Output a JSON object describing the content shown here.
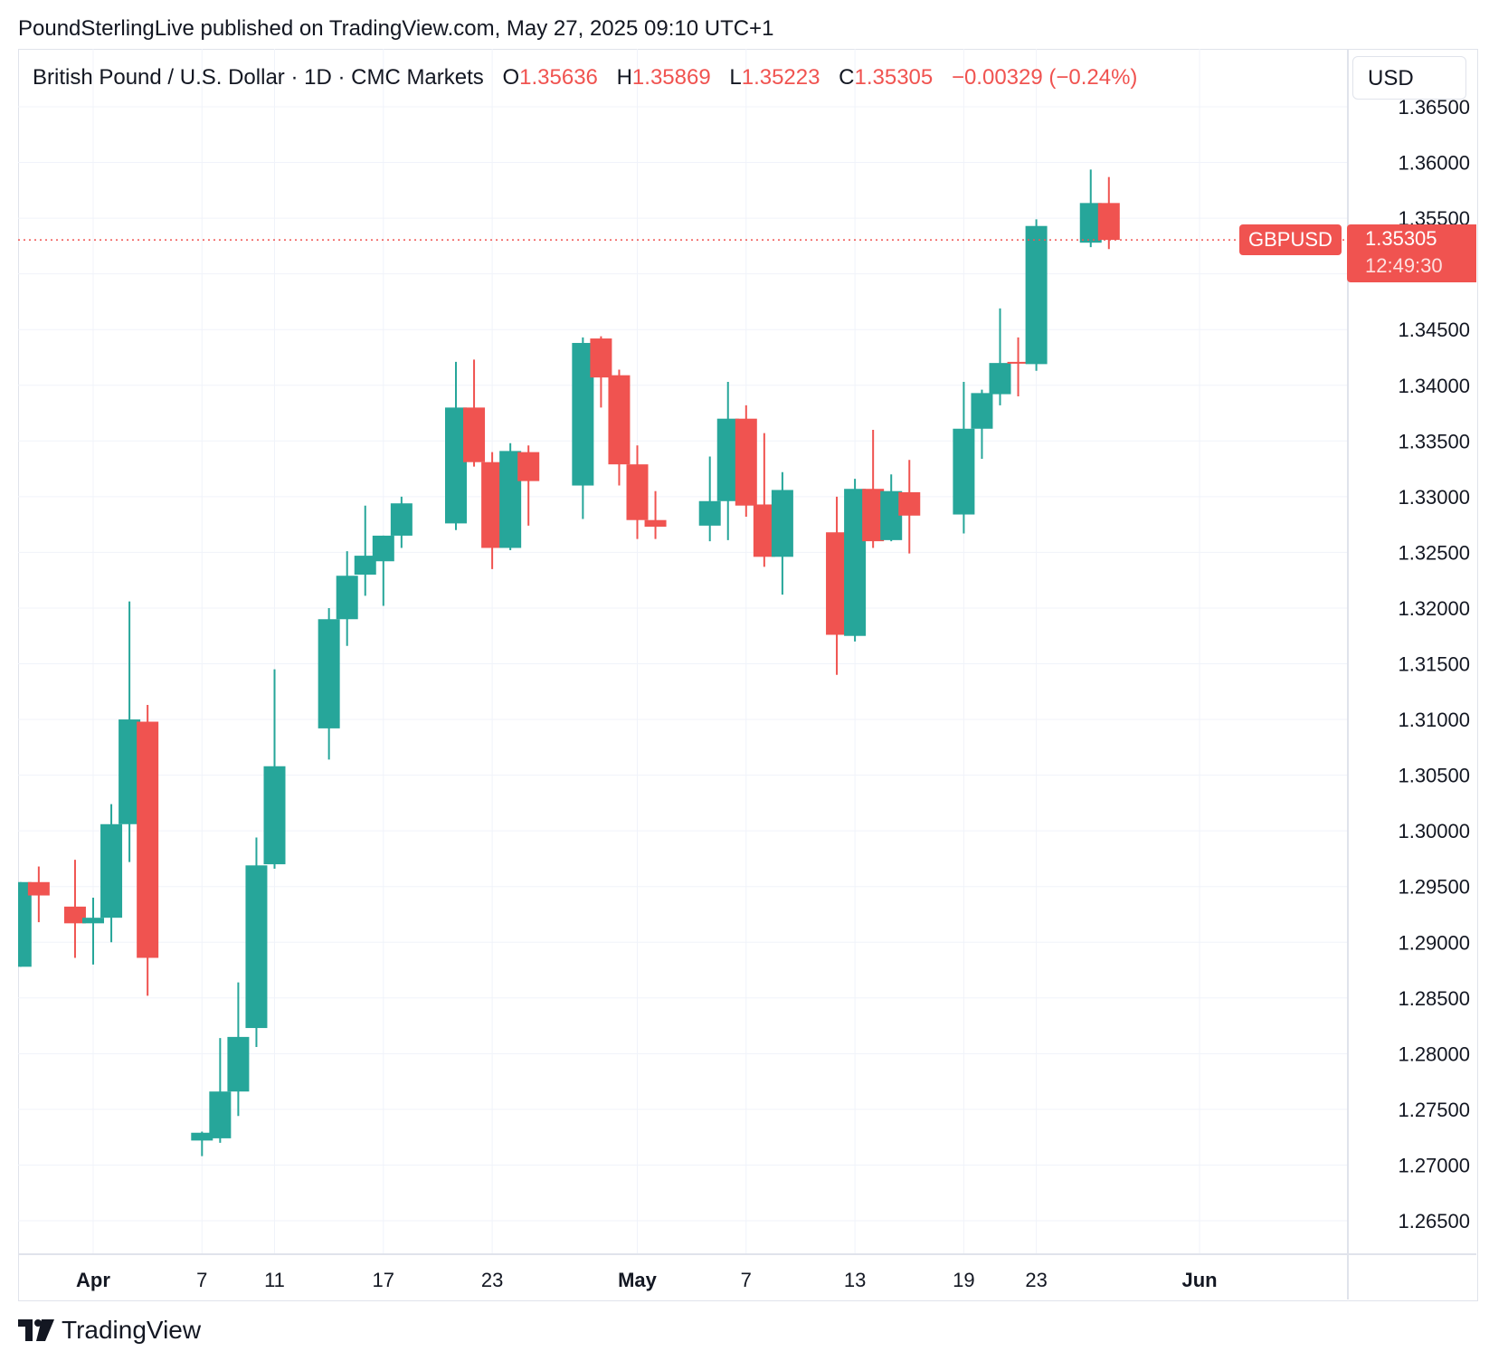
{
  "header": {
    "published": "PoundSterlingLive published on TradingView.com, May 27, 2025 09:10 UTC+1"
  },
  "legend": {
    "instrument": "British Pound / U.S. Dollar · 1D · CMC Markets",
    "o_label": "O",
    "o_value": "1.35636",
    "h_label": "H",
    "h_value": "1.35869",
    "l_label": "L",
    "l_value": "1.35223",
    "c_label": "C",
    "c_value": "1.35305",
    "change": "−0.00329 (−0.24%)"
  },
  "currency_button": "USD",
  "price_tag": {
    "symbol": "GBPUSD",
    "price": "1.35305",
    "countdown": "12:49:30"
  },
  "brand": {
    "name": "TradingView"
  },
  "colors": {
    "up": "#26a69a",
    "down": "#f05350",
    "grid": "#f0f3fa",
    "text": "#131722"
  },
  "chart_data": {
    "type": "candlestick",
    "ylim": [
      1.262,
      1.3675
    ],
    "y_ticks": [
      "1.26500",
      "1.27000",
      "1.27500",
      "1.28000",
      "1.28500",
      "1.29000",
      "1.29500",
      "1.30000",
      "1.30500",
      "1.31000",
      "1.31500",
      "1.32000",
      "1.32500",
      "1.33000",
      "1.33500",
      "1.34000",
      "1.34500",
      "1.35000",
      "1.35500",
      "1.36000",
      "1.36500"
    ],
    "x_ticks": [
      {
        "label": "Apr",
        "date": "2025-04-01",
        "bold": true
      },
      {
        "label": "7",
        "date": "2025-04-07",
        "bold": false
      },
      {
        "label": "11",
        "date": "2025-04-11",
        "bold": false
      },
      {
        "label": "17",
        "date": "2025-04-17",
        "bold": false
      },
      {
        "label": "23",
        "date": "2025-04-23",
        "bold": false
      },
      {
        "label": "May",
        "date": "2025-05-01",
        "bold": true
      },
      {
        "label": "7",
        "date": "2025-05-07",
        "bold": false
      },
      {
        "label": "13",
        "date": "2025-05-13",
        "bold": false
      },
      {
        "label": "19",
        "date": "2025-05-19",
        "bold": false
      },
      {
        "label": "23",
        "date": "2025-05-23",
        "bold": false
      },
      {
        "label": "Jun",
        "date": "2025-06-01",
        "bold": true
      }
    ],
    "last_price": 1.35305,
    "candles": [
      {
        "date": "2025-03-28",
        "open": 1.2878,
        "high": 1.2954,
        "low": 1.2878,
        "close": 1.2954
      },
      {
        "date": "2025-03-29",
        "open": 1.2954,
        "high": 1.2968,
        "low": 1.2918,
        "close": 1.2942
      },
      {
        "date": "2025-03-31",
        "open": 1.2932,
        "high": 1.2974,
        "low": 1.2886,
        "close": 1.2917
      },
      {
        "date": "2025-04-01",
        "open": 1.2917,
        "high": 1.294,
        "low": 1.288,
        "close": 1.2922
      },
      {
        "date": "2025-04-02",
        "open": 1.2922,
        "high": 1.3024,
        "low": 1.29,
        "close": 1.3006
      },
      {
        "date": "2025-04-03",
        "open": 1.3006,
        "high": 1.3206,
        "low": 1.2972,
        "close": 1.31
      },
      {
        "date": "2025-04-04",
        "open": 1.3098,
        "high": 1.3113,
        "low": 1.2852,
        "close": 1.2886
      },
      {
        "date": "2025-04-07",
        "open": 1.2722,
        "high": 1.273,
        "low": 1.2708,
        "close": 1.2729
      },
      {
        "date": "2025-04-08",
        "open": 1.2724,
        "high": 1.2814,
        "low": 1.272,
        "close": 1.2766
      },
      {
        "date": "2025-04-09",
        "open": 1.2766,
        "high": 1.2864,
        "low": 1.2744,
        "close": 1.2815
      },
      {
        "date": "2025-04-10",
        "open": 1.2823,
        "high": 1.2994,
        "low": 1.2806,
        "close": 1.2969
      },
      {
        "date": "2025-04-11",
        "open": 1.297,
        "high": 1.3145,
        "low": 1.2966,
        "close": 1.3058
      },
      {
        "date": "2025-04-14",
        "open": 1.3092,
        "high": 1.32,
        "low": 1.3064,
        "close": 1.319
      },
      {
        "date": "2025-04-15",
        "open": 1.319,
        "high": 1.3251,
        "low": 1.3166,
        "close": 1.3229
      },
      {
        "date": "2025-04-16",
        "open": 1.323,
        "high": 1.3292,
        "low": 1.3211,
        "close": 1.3247
      },
      {
        "date": "2025-04-17",
        "open": 1.3242,
        "high": 1.3265,
        "low": 1.3202,
        "close": 1.3265
      },
      {
        "date": "2025-04-18",
        "open": 1.3265,
        "high": 1.33,
        "low": 1.3254,
        "close": 1.3294
      },
      {
        "date": "2025-04-21",
        "open": 1.3276,
        "high": 1.3421,
        "low": 1.327,
        "close": 1.338
      },
      {
        "date": "2025-04-22",
        "open": 1.338,
        "high": 1.3423,
        "low": 1.3327,
        "close": 1.3331
      },
      {
        "date": "2025-04-23",
        "open": 1.3331,
        "high": 1.334,
        "low": 1.3235,
        "close": 1.3254
      },
      {
        "date": "2025-04-24",
        "open": 1.3254,
        "high": 1.3348,
        "low": 1.3252,
        "close": 1.3341
      },
      {
        "date": "2025-04-25",
        "open": 1.334,
        "high": 1.3346,
        "low": 1.3274,
        "close": 1.3314
      },
      {
        "date": "2025-04-28",
        "open": 1.331,
        "high": 1.3443,
        "low": 1.328,
        "close": 1.3438
      },
      {
        "date": "2025-04-29",
        "open": 1.3442,
        "high": 1.3444,
        "low": 1.338,
        "close": 1.3407
      },
      {
        "date": "2025-04-30",
        "open": 1.3409,
        "high": 1.3414,
        "low": 1.331,
        "close": 1.3329
      },
      {
        "date": "2025-05-01",
        "open": 1.3329,
        "high": 1.3346,
        "low": 1.3262,
        "close": 1.3279
      },
      {
        "date": "2025-05-02",
        "open": 1.3279,
        "high": 1.3305,
        "low": 1.3262,
        "close": 1.3273
      },
      {
        "date": "2025-05-05",
        "open": 1.3274,
        "high": 1.3336,
        "low": 1.326,
        "close": 1.3296
      },
      {
        "date": "2025-05-06",
        "open": 1.3296,
        "high": 1.3403,
        "low": 1.3261,
        "close": 1.337
      },
      {
        "date": "2025-05-07",
        "open": 1.337,
        "high": 1.3382,
        "low": 1.3282,
        "close": 1.3292
      },
      {
        "date": "2025-05-08",
        "open": 1.3293,
        "high": 1.3357,
        "low": 1.3237,
        "close": 1.3246
      },
      {
        "date": "2025-05-09",
        "open": 1.3246,
        "high": 1.3322,
        "low": 1.3212,
        "close": 1.3306
      },
      {
        "date": "2025-05-12",
        "open": 1.3268,
        "high": 1.33,
        "low": 1.314,
        "close": 1.3176
      },
      {
        "date": "2025-05-13",
        "open": 1.3175,
        "high": 1.3316,
        "low": 1.317,
        "close": 1.3307
      },
      {
        "date": "2025-05-14",
        "open": 1.3307,
        "high": 1.336,
        "low": 1.3254,
        "close": 1.326
      },
      {
        "date": "2025-05-15",
        "open": 1.3261,
        "high": 1.332,
        "low": 1.326,
        "close": 1.3305
      },
      {
        "date": "2025-05-16",
        "open": 1.3304,
        "high": 1.3333,
        "low": 1.3249,
        "close": 1.3283
      },
      {
        "date": "2025-05-19",
        "open": 1.3284,
        "high": 1.3403,
        "low": 1.3267,
        "close": 1.3361
      },
      {
        "date": "2025-05-20",
        "open": 1.3361,
        "high": 1.3396,
        "low": 1.3334,
        "close": 1.3393
      },
      {
        "date": "2025-05-21",
        "open": 1.3392,
        "high": 1.3469,
        "low": 1.3382,
        "close": 1.342
      },
      {
        "date": "2025-05-22",
        "open": 1.3421,
        "high": 1.3443,
        "low": 1.339,
        "close": 1.342
      },
      {
        "date": "2025-05-23",
        "open": 1.3419,
        "high": 1.3549,
        "low": 1.3413,
        "close": 1.3543
      },
      {
        "date": "2025-05-26",
        "open": 1.3528,
        "high": 1.35936,
        "low": 1.3524,
        "close": 1.35636
      },
      {
        "date": "2025-05-27",
        "open": 1.35636,
        "high": 1.35869,
        "low": 1.35223,
        "close": 1.35305
      }
    ]
  }
}
